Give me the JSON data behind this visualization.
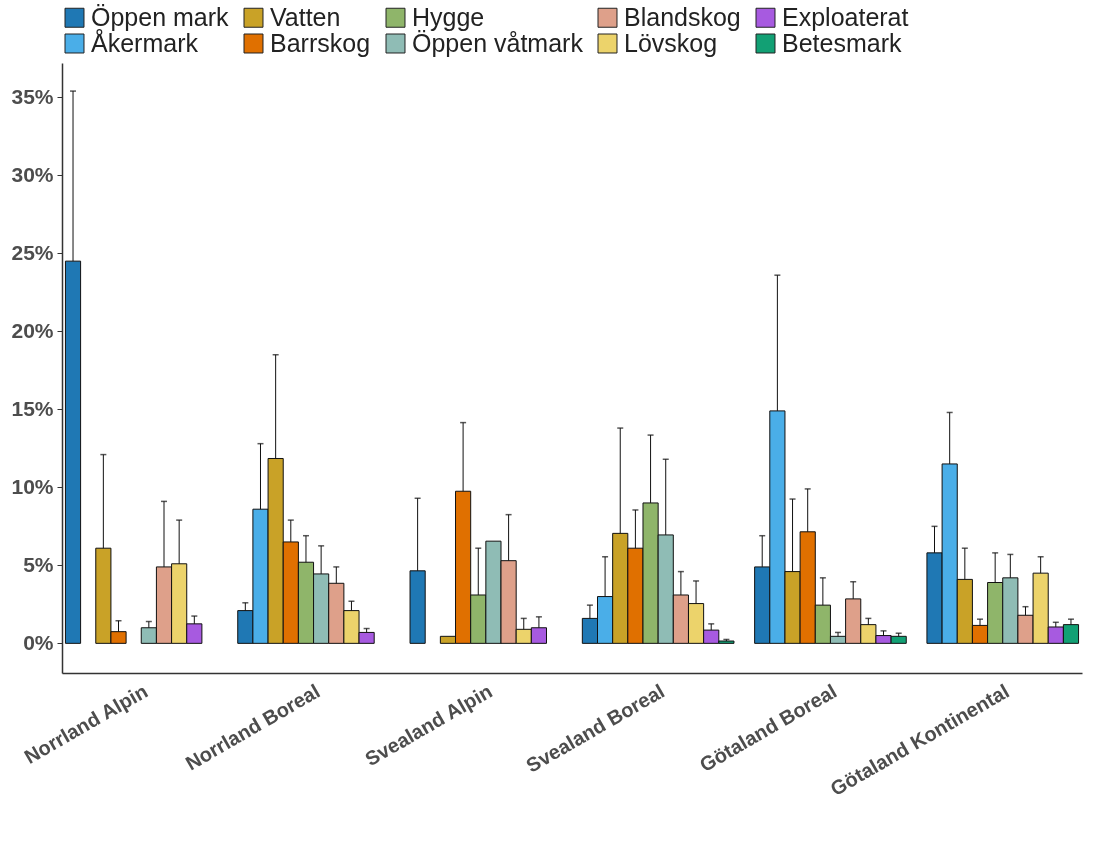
{
  "chart_data": {
    "type": "bar",
    "categories": [
      "Norrland Alpin",
      "Norrland Boreal",
      "Svealand Alpin",
      "Svealand Boreal",
      "Götaland Boreal",
      "Götaland Kontinental"
    ],
    "series": [
      {
        "name": "Öppen mark",
        "color": "#1f78b4",
        "values": [
          24.5,
          2.1,
          4.65,
          1.6,
          4.9,
          5.8
        ],
        "errors": [
          [
            24.5,
            35.4
          ],
          [
            2.1,
            2.6
          ],
          [
            4.65,
            9.3
          ],
          [
            1.6,
            2.45
          ],
          [
            4.9,
            6.9
          ],
          [
            5.8,
            7.5
          ]
        ]
      },
      {
        "name": "Åkermark",
        "color": "#4aaee8",
        "values": [
          null,
          8.6,
          null,
          3.0,
          14.9,
          11.5
        ],
        "errors": [
          null,
          [
            8.6,
            12.8
          ],
          null,
          [
            3.0,
            5.55
          ],
          [
            14.9,
            23.6
          ],
          [
            11.5,
            14.8
          ]
        ]
      },
      {
        "name": "Vatten",
        "color": "#c9a227",
        "values": [
          6.1,
          11.85,
          0.45,
          7.05,
          4.6,
          4.1
        ],
        "errors": [
          [
            6.1,
            12.1
          ],
          [
            11.85,
            18.5
          ],
          null,
          [
            7.05,
            13.8
          ],
          [
            4.6,
            9.25
          ],
          [
            4.1,
            6.1
          ]
        ]
      },
      {
        "name": "Barrskog",
        "color": "#e07000",
        "values": [
          0.75,
          6.5,
          9.75,
          6.1,
          7.15,
          1.15
        ],
        "errors": [
          [
            0.75,
            1.45
          ],
          [
            6.5,
            7.9
          ],
          [
            9.75,
            14.15
          ],
          [
            6.1,
            8.55
          ],
          [
            7.15,
            9.9
          ],
          [
            1.15,
            1.55
          ]
        ]
      },
      {
        "name": "Hygge",
        "color": "#8fb56a",
        "values": [
          null,
          5.2,
          3.1,
          9.0,
          2.45,
          3.9
        ],
        "errors": [
          null,
          [
            5.2,
            6.9
          ],
          [
            3.1,
            6.1
          ],
          [
            9.0,
            13.35
          ],
          [
            2.45,
            4.2
          ],
          [
            3.9,
            5.8
          ]
        ]
      },
      {
        "name": "Öppen våtmark",
        "color": "#8fbcb5",
        "values": [
          1.0,
          4.45,
          6.55,
          6.95,
          0.45,
          4.2
        ],
        "errors": [
          [
            1.0,
            1.4
          ],
          [
            4.45,
            6.25
          ],
          null,
          [
            6.95,
            11.8
          ],
          [
            0.45,
            0.7
          ],
          [
            4.2,
            5.7
          ]
        ]
      },
      {
        "name": "Blandskog",
        "color": "#dea08a",
        "values": [
          4.9,
          3.85,
          5.3,
          3.1,
          2.85,
          1.8
        ],
        "errors": [
          [
            4.9,
            9.1
          ],
          [
            3.85,
            4.9
          ],
          [
            5.3,
            8.25
          ],
          [
            3.1,
            4.6
          ],
          [
            2.85,
            3.95
          ],
          [
            1.8,
            2.35
          ]
        ]
      },
      {
        "name": "Lövskog",
        "color": "#ecd36b",
        "values": [
          5.1,
          2.1,
          0.9,
          2.55,
          1.2,
          4.5
        ],
        "errors": [
          [
            5.1,
            7.9
          ],
          [
            2.1,
            2.7
          ],
          [
            0.9,
            1.6
          ],
          [
            2.55,
            4.0
          ],
          [
            1.2,
            1.6
          ],
          [
            4.5,
            5.55
          ]
        ]
      },
      {
        "name": "Exploaterat",
        "color": "#a75ae0",
        "values": [
          1.25,
          0.7,
          1.0,
          0.85,
          0.5,
          1.05
        ],
        "errors": [
          [
            1.25,
            1.75
          ],
          [
            0.7,
            0.95
          ],
          [
            1.0,
            1.7
          ],
          [
            0.85,
            1.25
          ],
          [
            0.5,
            0.8
          ],
          [
            1.05,
            1.35
          ]
        ]
      },
      {
        "name": "Betesmark",
        "color": "#12a074",
        "values": [
          null,
          null,
          null,
          0.15,
          0.45,
          1.2
        ],
        "errors": [
          null,
          null,
          null,
          [
            0.15,
            0.25
          ],
          [
            0.45,
            0.65
          ],
          [
            1.2,
            1.55
          ]
        ]
      }
    ],
    "ylim": [
      -1.9,
      37.2
    ],
    "yticks": [
      {
        "value": 0,
        "label": "0%"
      },
      {
        "value": 5,
        "label": "5%"
      },
      {
        "value": 10,
        "label": "10%"
      },
      {
        "value": 15,
        "label": "15%"
      },
      {
        "value": 20,
        "label": "20%"
      },
      {
        "value": 25,
        "label": "25%"
      },
      {
        "value": 30,
        "label": "30%"
      },
      {
        "value": 35,
        "label": "35%"
      }
    ],
    "legend": "top"
  }
}
